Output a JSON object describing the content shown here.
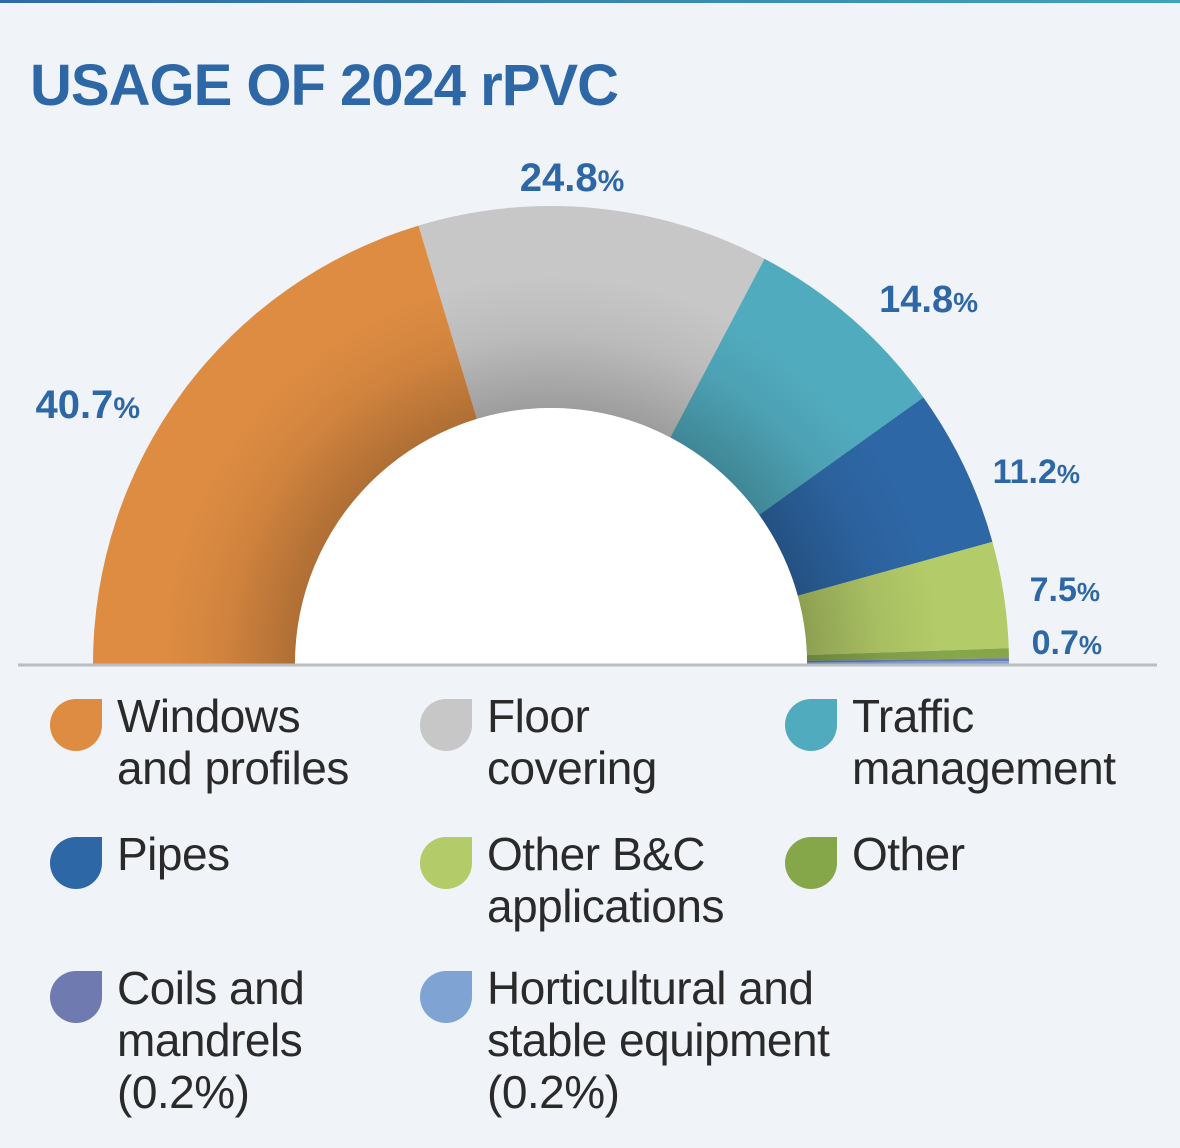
{
  "title": "USAGE OF 2024 rPVC",
  "colors": {
    "title": "#2e67a6",
    "windows": "#de8c42",
    "floor": "#c7c7c7",
    "traffic": "#51abbe",
    "pipes": "#2e67a6",
    "other_bc": "#b3cb68",
    "other": "#86a64a",
    "coils": "#6f7ab1",
    "horticultural": "#7fa3d3"
  },
  "chart_data": {
    "type": "pie",
    "shape": "half-donut",
    "legend_position": "bottom",
    "slices": [
      {
        "name": "Windows and profiles",
        "value": 40.7,
        "label": "40.7",
        "color": "#de8c42"
      },
      {
        "name": "Floor covering",
        "value": 24.8,
        "label": "24.8",
        "color": "#c7c7c7"
      },
      {
        "name": "Traffic management",
        "value": 14.8,
        "label": "14.8",
        "color": "#51abbe"
      },
      {
        "name": "Pipes",
        "value": 11.2,
        "label": "11.2",
        "color": "#2e67a6"
      },
      {
        "name": "Other B&C applications",
        "value": 7.5,
        "label": "7.5",
        "color": "#b3cb68"
      },
      {
        "name": "Other",
        "value": 0.7,
        "label": "0.7",
        "color": "#86a64a"
      },
      {
        "name": "Coils and mandrels",
        "value": 0.2,
        "label": "",
        "color": "#6f7ab1"
      },
      {
        "name": "Horticultural and stable equipment",
        "value": 0.2,
        "label": "",
        "color": "#7fa3d3"
      }
    ],
    "percent_sign": "%"
  },
  "legend": [
    {
      "label": "Windows\nand profiles",
      "color": "#de8c42",
      "icon": "leaf-drop-icon"
    },
    {
      "label": "Floor\ncovering",
      "color": "#c7c7c7",
      "icon": "leaf-drop-icon"
    },
    {
      "label": "Traffic\nmanagement",
      "color": "#51abbe",
      "icon": "leaf-drop-icon"
    },
    {
      "label": "Pipes",
      "color": "#2e67a6",
      "icon": "leaf-drop-icon"
    },
    {
      "label": "Other B&C\napplications",
      "color": "#b3cb68",
      "icon": "leaf-drop-icon"
    },
    {
      "label": "Other",
      "color": "#86a64a",
      "icon": "leaf-drop-icon"
    },
    {
      "label": "Coils and\nmandrels\n(0.2%)",
      "color": "#6f7ab1",
      "icon": "leaf-drop-icon"
    },
    {
      "label": "Horticultural and\nstable equipment\n(0.2%)",
      "color": "#7fa3d3",
      "icon": "leaf-drop-icon"
    }
  ]
}
